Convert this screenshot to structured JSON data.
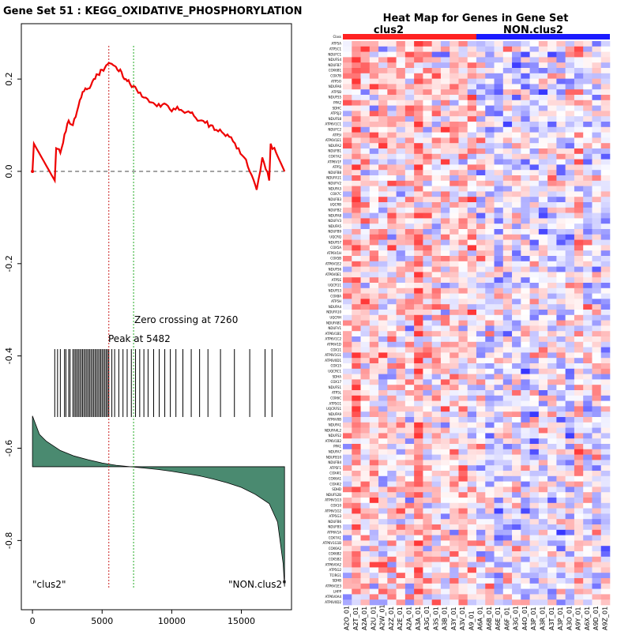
{
  "gsea_panel": {
    "title": "Gene Set  51 : KEGG_OXIDATIVE_PHOSPHORYLATION",
    "peak_label": "Peak at 5482",
    "zero_label": "Zero crossing at 7260",
    "left_class": "\"clus2\"",
    "right_class": "\"NON.clus2\"",
    "colors": {
      "es_line": "#ee0000",
      "peak_line": "#cc2222",
      "zero_line": "#22aa22",
      "area_fill": "#4a8a70"
    }
  },
  "heatmap_panel": {
    "title": "Heat Map for Genes in Gene Set",
    "group_left": "clus2",
    "group_right": "NON.clus2",
    "group_left_color": "#ff2222",
    "group_right_color": "#1a1aff",
    "corner_label": "Class",
    "n_left_samples": 15,
    "n_right_samples": 15,
    "gene_labels": [
      "ATP5A",
      "ATP5C1",
      "NDUFC1",
      "NDUFS4",
      "NDUFB7",
      "COX6B1",
      "COX7B",
      "ATP5O",
      "NDUFA6",
      "ATP5B",
      "NDUFS5",
      "PPA2",
      "SDHC",
      "ATP5J2",
      "NDUFS8",
      "ATP6V1C1",
      "NDUFC2",
      "ATP5I",
      "ATP6V1E1",
      "NDUFA2",
      "NDUFB1",
      "COX7A2",
      "ATP6V1F",
      "ATP5J",
      "NDUFB8",
      "NDUFA11",
      "NDUFV2",
      "NDUFA3",
      "COX7C",
      "NDUFB3",
      "UQCRB",
      "NDUFB2",
      "NDUFA8",
      "NDUFV3",
      "NDUFA5",
      "NDUFB9",
      "UQCRQ",
      "NDUFS7",
      "COX5A",
      "ATP6V1H",
      "COX5B",
      "ATP6V1E2",
      "NDUFS6",
      "ATP6V0E1",
      "ATP5E",
      "UQCR11",
      "NDUFS3",
      "COX8A",
      "ATP5H",
      "NDUFA4",
      "NDUFA10",
      "UQCRH",
      "NDUFAB1",
      "NDUFV1",
      "ATP6V1B1",
      "ATP6V1C2",
      "ATP6V1D",
      "COX11",
      "ATP6V1G1",
      "ATP6V0D1",
      "COX15",
      "UQCRC1",
      "SDHA",
      "COX17",
      "NDUFS1",
      "ATP5L",
      "COX6C",
      "ATP5G1",
      "UQCRFS1",
      "NDUFA9",
      "ATP6V0B",
      "NDUFA1",
      "NDUFA4L2",
      "NDUFS2",
      "ATP6V1B2",
      "PPA1",
      "NDUFA7",
      "NDUFB10",
      "NDUFB4",
      "ATP5F1",
      "COX4I1",
      "COX6A1",
      "COX4I2",
      "SDHD",
      "NDUFS2B",
      "ATP6V1G3",
      "COX10",
      "ATP6V1G2",
      "ATP5G3",
      "NDUFB6",
      "NDUFB5",
      "ATP6V1A",
      "COX7A1",
      "ATP6V1G1B",
      "COX6A2",
      "COX6B2",
      "COX5B2",
      "ATP6V0A2",
      "ATP5G2",
      "TCIRG1",
      "SDHB",
      "ATP6V1E3",
      "LHPP",
      "ATP6V0A4",
      "ATP6V0D2"
    ],
    "sample_labels": [
      "A2O_01",
      "A2T_01",
      "A2A_01",
      "A2U_01",
      "A2W_01",
      "A2Z_01",
      "A2E_01",
      "A2A_01",
      "A3A_01",
      "A3G_01",
      "A3S_01",
      "A3B_01",
      "A3Y_01",
      "A3V_01",
      "A9_01",
      "A6A_01",
      "A6B_01",
      "A6E_01",
      "A6F_01",
      "A3G_01",
      "A4O_01",
      "A3P_01",
      "A3R_01",
      "A3T_01",
      "A3P_01",
      "A3O_01",
      "A9Y_01",
      "A6X_01",
      "A9D_01",
      "A9Z_01"
    ],
    "matrix_note": "normalized expression values, approx. range -2.5 (blue) to 2.5 (red)"
  },
  "chart_data": [
    {
      "type": "line",
      "title": "Gene Set  51 : KEGG_OXIDATIVE_PHOSPHORYLATION",
      "xlabel": "",
      "ylabel": "",
      "xlim": [
        -800,
        18600
      ],
      "ylim": [
        -0.95,
        0.32
      ],
      "x_ticks": [
        0,
        5000,
        10000,
        15000
      ],
      "x_tick_labels": [
        "0",
        "5000",
        "10000",
        "15000"
      ],
      "y_ticks": [
        0.2,
        0.0,
        -0.2,
        -0.4,
        -0.6,
        -0.8
      ],
      "y_tick_labels": [
        "0.2",
        "0.0",
        "-0.2",
        "-0.4",
        "-0.6",
        "-0.8"
      ],
      "peak_x": 5482,
      "zero_crossing_x": 7260,
      "series": [
        {
          "name": "enrichment score",
          "x": [
            0,
            100,
            1600,
            1700,
            2000,
            2300,
            2600,
            2900,
            3200,
            3500,
            3800,
            4100,
            4400,
            4700,
            5000,
            5300,
            5482,
            5800,
            6100,
            6400,
            6700,
            7000,
            7260,
            7600,
            8000,
            8400,
            8800,
            9200,
            9600,
            10000,
            10400,
            10800,
            11200,
            11600,
            12000,
            12400,
            12800,
            13200,
            13600,
            14000,
            14400,
            14800,
            15200,
            15600,
            16000,
            16100,
            16500,
            17000,
            17100,
            17500,
            18100
          ],
          "y": [
            0,
            0.06,
            -0.02,
            0.05,
            0.04,
            0.08,
            0.11,
            0.1,
            0.13,
            0.16,
            0.18,
            0.18,
            0.2,
            0.21,
            0.22,
            0.23,
            0.235,
            0.23,
            0.22,
            0.215,
            0.2,
            0.19,
            0.185,
            0.17,
            0.16,
            0.15,
            0.145,
            0.14,
            0.145,
            0.13,
            0.14,
            0.13,
            0.13,
            0.12,
            0.11,
            0.105,
            0.1,
            0.09,
            0.085,
            0.08,
            0.065,
            0.05,
            0.03,
            0.0,
            -0.03,
            -0.04,
            0.03,
            -0.02,
            0.06,
            0.04,
            0.0
          ]
        },
        {
          "name": "ranked metric",
          "x": [
            0,
            500,
            1000,
            2000,
            3000,
            4000,
            5000,
            6000,
            7000,
            8000,
            9000,
            10000,
            11000,
            12000,
            13000,
            14000,
            15000,
            16000,
            17000,
            17600,
            18000,
            18100
          ],
          "y": [
            -0.53,
            -0.57,
            -0.585,
            -0.605,
            -0.617,
            -0.625,
            -0.632,
            -0.637,
            -0.64,
            -0.643,
            -0.646,
            -0.65,
            -0.655,
            -0.66,
            -0.667,
            -0.675,
            -0.685,
            -0.7,
            -0.72,
            -0.76,
            -0.85,
            -0.9
          ]
        }
      ],
      "hits": [
        1600,
        1800,
        2000,
        2300,
        2400,
        2600,
        2700,
        2900,
        3000,
        3100,
        3200,
        3300,
        3400,
        3500,
        3600,
        3700,
        3800,
        3900,
        4000,
        4100,
        4200,
        4300,
        4400,
        4500,
        4600,
        4700,
        4800,
        4900,
        5000,
        5100,
        5200,
        5300,
        5400,
        5482,
        5700,
        5900,
        6200,
        6500,
        6800,
        7100,
        7400,
        7700,
        8000,
        8300,
        8700,
        9100,
        9500,
        9900,
        10300,
        10800,
        11400,
        12000,
        12600,
        13500,
        14500,
        15600,
        16700,
        17200
      ],
      "baseline_y": 0.0,
      "metric_zero_y": -0.64,
      "left_label": "\"clus2\"",
      "right_label": "\"NON.clus2\""
    },
    {
      "type": "heatmap",
      "title": "Heat Map for Genes in Gene Set",
      "rows": 105,
      "cols": 30,
      "groups": [
        "clus2",
        "NON.clus2"
      ],
      "color_scale": [
        "#2222ff",
        "#ffffff",
        "#ff2222"
      ],
      "value_range": [
        -2.5,
        2.5
      ]
    }
  ]
}
